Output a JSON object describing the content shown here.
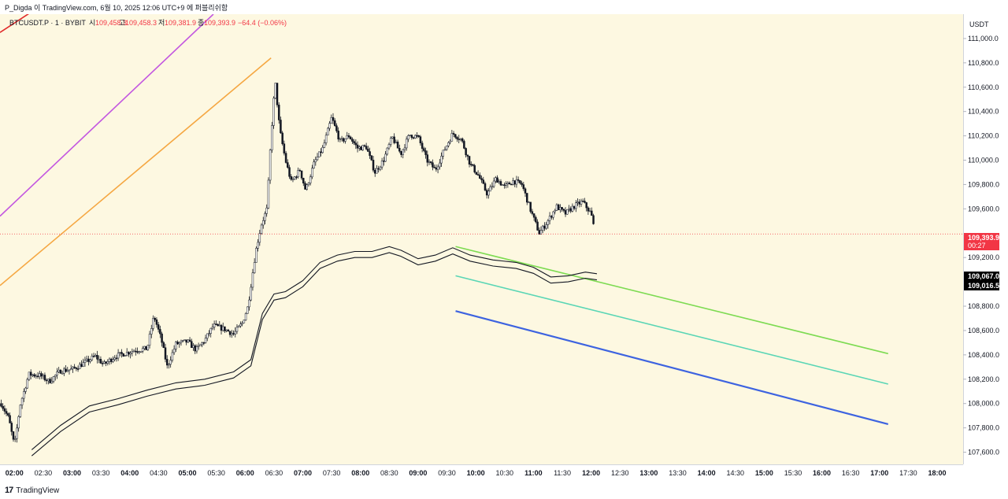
{
  "header": {
    "credit": "P_Digda 이 TradingView.com, 6월 10, 2025 12:06 UTC+9 에 퍼블리쉬함",
    "symbol": "BTCUSDT.P · 1 · BYBIT",
    "open_label": "시",
    "open": "109,458.3",
    "high_label": "고",
    "high": "109,458.3",
    "low_label": "저",
    "low": "109,381.9",
    "close_label": "종",
    "close": "109,393.9",
    "change": "−64.4 (−0.06%)"
  },
  "footer": {
    "brand_mark": "17",
    "brand": "TradingView"
  },
  "colors": {
    "background": "#fdf8e1",
    "candle": "#131722",
    "last_price": "#f23645",
    "purple_line": "#c357e0",
    "orange_line": "#f5a742",
    "green_line": "#7ddb52",
    "teal_line": "#5ad6b5",
    "blue_line": "#3d63e0",
    "red_line": "#e02a2a"
  },
  "chart_data": {
    "type": "candlestick",
    "price_axis": {
      "currency": "USDT",
      "ylim": [
        107500,
        111200
      ],
      "ticks": [
        "111,000.0",
        "110,800.0",
        "110,600.0",
        "110,400.0",
        "110,200.0",
        "110,000.0",
        "109,800.0",
        "109,600.0",
        "109,200.0",
        "108,800.0",
        "108,600.0",
        "108,400.0",
        "108,200.0",
        "108,000.0",
        "107,800.0",
        "107,600.0"
      ],
      "tick_values": [
        111000,
        110800,
        110600,
        110400,
        110200,
        110000,
        109800,
        109600,
        109200,
        108800,
        108600,
        108400,
        108200,
        108000,
        107800,
        107600
      ]
    },
    "time_axis": {
      "xlim_hours": [
        1.75,
        18.45
      ],
      "ticks": [
        "02:00",
        "02:30",
        "03:00",
        "03:30",
        "04:00",
        "04:30",
        "05:00",
        "05:30",
        "06:00",
        "06:30",
        "07:00",
        "07:30",
        "08:00",
        "08:30",
        "09:00",
        "09:30",
        "10:00",
        "10:30",
        "11:00",
        "11:30",
        "12:00",
        "12:30",
        "13:00",
        "13:30",
        "14:00",
        "14:30",
        "15:00",
        "15:30",
        "16:00",
        "16:30",
        "17:00",
        "17:30",
        "18:00"
      ],
      "tick_hours": [
        2,
        2.5,
        3,
        3.5,
        4,
        4.5,
        5,
        5.5,
        6,
        6.5,
        7,
        7.5,
        8,
        8.5,
        9,
        9.5,
        10,
        10.5,
        11,
        11.5,
        12,
        12.5,
        13,
        13.5,
        14,
        14.5,
        15,
        15.5,
        16,
        16.5,
        17,
        17.5,
        18
      ]
    },
    "last_price": {
      "label": "109,393.9",
      "value": 109393.9,
      "countdown": "00:27"
    },
    "envelope_labels": [
      {
        "label": "109,067.0",
        "value": 109067
      },
      {
        "label": "109,016.5",
        "value": 109016.5
      }
    ],
    "price_path": [
      [
        1.77,
        108000
      ],
      [
        1.9,
        107880
      ],
      [
        2.0,
        107650
      ],
      [
        2.1,
        107990
      ],
      [
        2.25,
        108240
      ],
      [
        2.45,
        108230
      ],
      [
        2.6,
        108180
      ],
      [
        2.8,
        108270
      ],
      [
        3.0,
        108280
      ],
      [
        3.2,
        108330
      ],
      [
        3.4,
        108390
      ],
      [
        3.55,
        108320
      ],
      [
        3.75,
        108390
      ],
      [
        3.9,
        108410
      ],
      [
        4.1,
        108440
      ],
      [
        4.3,
        108450
      ],
      [
        4.42,
        108720
      ],
      [
        4.55,
        108520
      ],
      [
        4.65,
        108300
      ],
      [
        4.8,
        108490
      ],
      [
        5.0,
        108510
      ],
      [
        5.15,
        108440
      ],
      [
        5.3,
        108520
      ],
      [
        5.45,
        108640
      ],
      [
        5.65,
        108610
      ],
      [
        5.8,
        108570
      ],
      [
        5.95,
        108660
      ],
      [
        6.05,
        108800
      ],
      [
        6.18,
        109240
      ],
      [
        6.28,
        109470
      ],
      [
        6.38,
        109600
      ],
      [
        6.45,
        110200
      ],
      [
        6.52,
        110650
      ],
      [
        6.6,
        110250
      ],
      [
        6.7,
        110000
      ],
      [
        6.8,
        109820
      ],
      [
        6.95,
        109920
      ],
      [
        7.05,
        109750
      ],
      [
        7.2,
        109980
      ],
      [
        7.35,
        110100
      ],
      [
        7.5,
        110350
      ],
      [
        7.65,
        110150
      ],
      [
        7.8,
        110200
      ],
      [
        7.95,
        110100
      ],
      [
        8.1,
        110110
      ],
      [
        8.25,
        109900
      ],
      [
        8.4,
        110000
      ],
      [
        8.55,
        110190
      ],
      [
        8.7,
        110050
      ],
      [
        8.85,
        110210
      ],
      [
        9.0,
        110190
      ],
      [
        9.15,
        110000
      ],
      [
        9.3,
        109920
      ],
      [
        9.45,
        110080
      ],
      [
        9.6,
        110220
      ],
      [
        9.75,
        110170
      ],
      [
        9.9,
        109970
      ],
      [
        10.05,
        109870
      ],
      [
        10.2,
        109720
      ],
      [
        10.35,
        109850
      ],
      [
        10.5,
        109780
      ],
      [
        10.65,
        109830
      ],
      [
        10.8,
        109800
      ],
      [
        10.95,
        109590
      ],
      [
        11.1,
        109400
      ],
      [
        11.25,
        109500
      ],
      [
        11.4,
        109620
      ],
      [
        11.55,
        109560
      ],
      [
        11.7,
        109620
      ],
      [
        11.85,
        109660
      ],
      [
        12.0,
        109560
      ],
      [
        12.07,
        109394
      ]
    ],
    "envelope_upper": [
      [
        2.3,
        107620
      ],
      [
        2.8,
        107820
      ],
      [
        3.3,
        107980
      ],
      [
        3.8,
        108040
      ],
      [
        4.3,
        108110
      ],
      [
        4.8,
        108170
      ],
      [
        5.3,
        108200
      ],
      [
        5.8,
        108260
      ],
      [
        6.1,
        108360
      ],
      [
        6.3,
        108740
      ],
      [
        6.5,
        108900
      ],
      [
        6.7,
        108920
      ],
      [
        7.0,
        109010
      ],
      [
        7.3,
        109160
      ],
      [
        7.6,
        109220
      ],
      [
        7.9,
        109250
      ],
      [
        8.2,
        109250
      ],
      [
        8.5,
        109290
      ],
      [
        8.7,
        109260
      ],
      [
        9.0,
        109190
      ],
      [
        9.3,
        109220
      ],
      [
        9.6,
        109280
      ],
      [
        9.9,
        109220
      ],
      [
        10.3,
        109180
      ],
      [
        10.7,
        109160
      ],
      [
        11.0,
        109120
      ],
      [
        11.3,
        109040
      ],
      [
        11.6,
        109050
      ],
      [
        11.9,
        109080
      ],
      [
        12.1,
        109067
      ]
    ],
    "envelope_lower": [
      [
        2.3,
        107570
      ],
      [
        2.8,
        107770
      ],
      [
        3.3,
        107930
      ],
      [
        3.8,
        107990
      ],
      [
        4.3,
        108060
      ],
      [
        4.8,
        108120
      ],
      [
        5.3,
        108150
      ],
      [
        5.8,
        108210
      ],
      [
        6.1,
        108310
      ],
      [
        6.3,
        108690
      ],
      [
        6.5,
        108850
      ],
      [
        6.7,
        108870
      ],
      [
        7.0,
        108960
      ],
      [
        7.3,
        109110
      ],
      [
        7.6,
        109170
      ],
      [
        7.9,
        109200
      ],
      [
        8.2,
        109200
      ],
      [
        8.5,
        109240
      ],
      [
        8.7,
        109210
      ],
      [
        9.0,
        109140
      ],
      [
        9.3,
        109170
      ],
      [
        9.6,
        109230
      ],
      [
        9.9,
        109170
      ],
      [
        10.3,
        109130
      ],
      [
        10.7,
        109110
      ],
      [
        11.0,
        109070
      ],
      [
        11.3,
        108990
      ],
      [
        11.6,
        109000
      ],
      [
        11.9,
        109030
      ],
      [
        12.1,
        109016.5
      ]
    ],
    "trendlines": [
      {
        "color_key": "red_line",
        "from": [
          1.75,
          111050
        ],
        "to": [
          2.3,
          111220
        ]
      },
      {
        "color_key": "purple_line",
        "from": [
          1.75,
          109540
        ],
        "to": [
          5.45,
          111200
        ]
      },
      {
        "color_key": "orange_line",
        "from": [
          1.75,
          108970
        ],
        "to": [
          6.45,
          110840
        ]
      },
      {
        "color_key": "green_line",
        "from": [
          9.65,
          109290
        ],
        "to": [
          17.15,
          108410
        ]
      },
      {
        "color_key": "teal_line",
        "from": [
          9.65,
          109050
        ],
        "to": [
          17.15,
          108160
        ]
      },
      {
        "color_key": "blue_line",
        "from": [
          9.65,
          108760
        ],
        "to": [
          17.15,
          107830
        ]
      }
    ]
  }
}
